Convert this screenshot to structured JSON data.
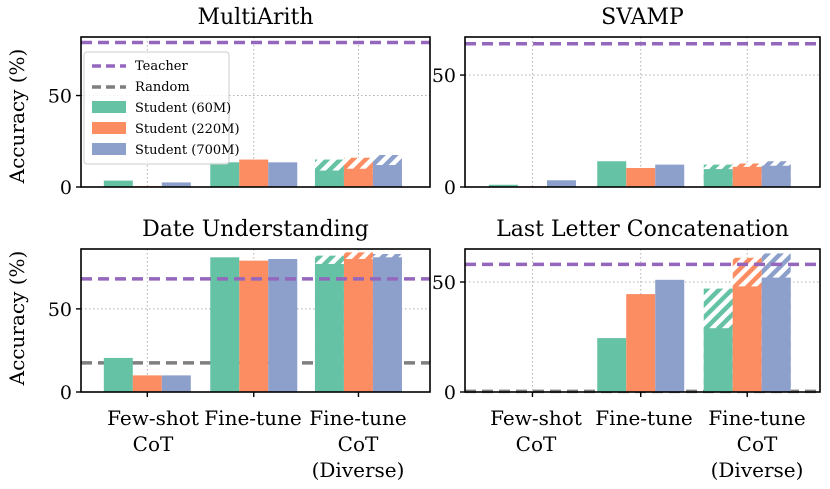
{
  "colors": {
    "student_60m": "#66c2a5",
    "student_220m": "#fc8d62",
    "student_700m": "#8da0cb",
    "teacher": "#9467bd",
    "random": "#7f7f7f",
    "grid": "#b0b0b0",
    "axis": "#000000"
  },
  "legend": {
    "teacher": "Teacher",
    "random": "Random",
    "student_60m": "Student (60M)",
    "student_220m": "Student (220M)",
    "student_700m": "Student (700M)"
  },
  "y_axis_label": "Accuracy (%)",
  "category_labels": [
    [
      "Few-shot",
      "CoT"
    ],
    [
      "Fine-tune"
    ],
    [
      "Fine-tune",
      "CoT",
      "(Diverse)"
    ]
  ],
  "chart_data": [
    {
      "type": "bar",
      "title": "MultiArith",
      "ylabel": "Accuracy (%)",
      "ylim": [
        0,
        82
      ],
      "yticks": [
        0,
        50
      ],
      "categories": [
        "Few-shot CoT",
        "Fine-tune",
        "Fine-tune CoT (Diverse)"
      ],
      "teacher": 79,
      "random": null,
      "series": [
        {
          "name": "Student (60M)",
          "values": [
            3.5,
            13.5,
            9
          ],
          "diverse_total": 15
        },
        {
          "name": "Student (220M)",
          "values": [
            0.5,
            15,
            10
          ],
          "diverse_total": 16
        },
        {
          "name": "Student (700M)",
          "values": [
            2.5,
            13.5,
            12
          ],
          "diverse_total": 17.5
        }
      ]
    },
    {
      "type": "bar",
      "title": "SVAMP",
      "ylabel": "",
      "ylim": [
        0,
        67
      ],
      "yticks": [
        0,
        50
      ],
      "categories": [
        "Few-shot CoT",
        "Fine-tune",
        "Fine-tune CoT (Diverse)"
      ],
      "teacher": 64,
      "random": null,
      "series": [
        {
          "name": "Student (60M)",
          "values": [
            1,
            11.5,
            8
          ],
          "diverse_total": 10
        },
        {
          "name": "Student (220M)",
          "values": [
            0.3,
            8.5,
            9
          ],
          "diverse_total": 10.5
        },
        {
          "name": "Student (700M)",
          "values": [
            3,
            10,
            9.5
          ],
          "diverse_total": 11.5
        }
      ]
    },
    {
      "type": "bar",
      "title": "Date Understanding",
      "ylabel": "Accuracy (%)",
      "ylim": [
        0,
        86
      ],
      "yticks": [
        0,
        50
      ],
      "categories": [
        "Few-shot CoT",
        "Fine-tune",
        "Fine-tune CoT (Diverse)"
      ],
      "teacher": 68,
      "random": 17.5,
      "series": [
        {
          "name": "Student (60M)",
          "values": [
            20.5,
            81,
            77
          ],
          "diverse_total": 82
        },
        {
          "name": "Student (220M)",
          "values": [
            10,
            79,
            80
          ],
          "diverse_total": 84
        },
        {
          "name": "Student (700M)",
          "values": [
            10,
            80,
            81
          ],
          "diverse_total": 83
        }
      ]
    },
    {
      "type": "bar",
      "title": "Last Letter Concatenation",
      "ylabel": "",
      "ylim": [
        0,
        65
      ],
      "yticks": [
        0,
        50
      ],
      "categories": [
        "Few-shot CoT",
        "Fine-tune",
        "Fine-tune CoT (Diverse)"
      ],
      "teacher": 58,
      "random": 0.3,
      "series": [
        {
          "name": "Student (60M)",
          "values": [
            0,
            24.5,
            29
          ],
          "diverse_total": 47
        },
        {
          "name": "Student (220M)",
          "values": [
            0,
            44.5,
            48
          ],
          "diverse_total": 61
        },
        {
          "name": "Student (700M)",
          "values": [
            0,
            51,
            52
          ],
          "diverse_total": 63
        }
      ]
    }
  ]
}
